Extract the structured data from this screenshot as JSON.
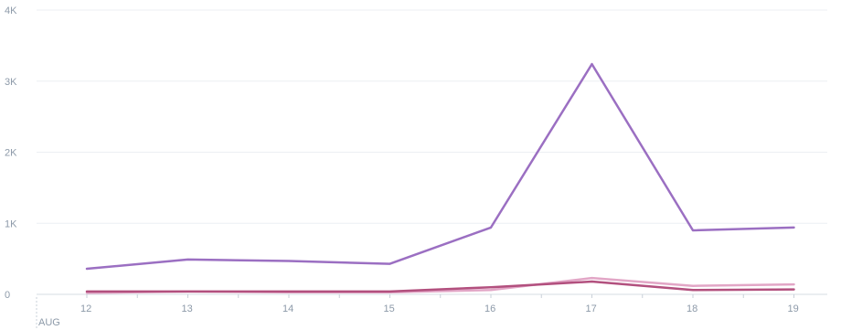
{
  "chart_data": {
    "type": "line",
    "title": "",
    "xlabel": "",
    "ylabel": "",
    "month_label": "AUG",
    "x": [
      "12",
      "13",
      "14",
      "15",
      "16",
      "17",
      "18",
      "19"
    ],
    "ylim": [
      0,
      4000
    ],
    "y_ticks": [
      0,
      1000,
      2000,
      3000,
      4000
    ],
    "y_tick_labels": [
      "0",
      "1K",
      "2K",
      "3K",
      "4K"
    ],
    "grid": true,
    "legend": "none",
    "series": [
      {
        "color": "#9b6fc2",
        "stroke_width": 2.5,
        "values": [
          360,
          490,
          470,
          430,
          940,
          3240,
          900,
          940
        ]
      },
      {
        "color": "#e2a6c6",
        "stroke_width": 2.5,
        "values": [
          20,
          40,
          30,
          30,
          60,
          230,
          120,
          140
        ]
      },
      {
        "color": "#b2507e",
        "stroke_width": 2.5,
        "values": [
          40,
          40,
          40,
          40,
          100,
          180,
          60,
          70
        ]
      }
    ]
  }
}
